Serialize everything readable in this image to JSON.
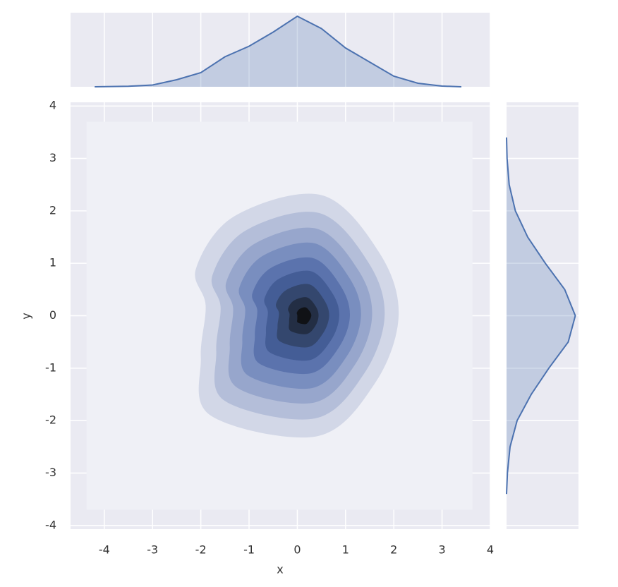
{
  "chart_data": {
    "type": "kde-joint",
    "x_label": "x",
    "y_label": "y",
    "xlim": [
      -4.7,
      4
    ],
    "ylim": [
      -4.07,
      4.07
    ],
    "xticks": [
      -4,
      -3,
      -2,
      -1,
      0,
      1,
      2,
      3,
      4
    ],
    "yticks": [
      -4,
      -3,
      -2,
      -1,
      0,
      1,
      2,
      3,
      4
    ],
    "grid": true,
    "color": "#4c72b0",
    "contours": [
      {
        "color": "#eff0f6",
        "x": [
          -4.37,
          3.63,
          3.63,
          -4.37
        ],
        "y": [
          3.7,
          3.7,
          -3.7,
          -3.7
        ]
      },
      {
        "color": "#d2d7e7",
        "x": [
          -2.1,
          -1.3,
          0.5,
          1.7,
          2.1,
          1.6,
          0.4,
          -1.8,
          -2.0,
          -1.9
        ],
        "y": [
          0.9,
          1.9,
          2.3,
          1.2,
          0,
          -1.3,
          -2.3,
          -1.9,
          -0.8,
          0.2
        ]
      },
      {
        "color": "#b4bed9",
        "x": [
          -1.76,
          -1.08,
          0.45,
          1.47,
          1.81,
          1.38,
          0.36,
          -1.51,
          -1.68,
          -1.59
        ],
        "y": [
          0.77,
          1.62,
          1.96,
          1.02,
          0,
          -1.11,
          -1.96,
          -1.62,
          -0.68,
          0.17
        ]
      },
      {
        "color": "#97a6cc",
        "x": [
          -1.47,
          -0.89,
          0.4,
          1.27,
          1.55,
          1.19,
          0.33,
          -1.25,
          -1.4,
          -1.33
        ],
        "y": [
          0.65,
          1.37,
          1.66,
          0.86,
          0,
          -0.94,
          -1.66,
          -1.37,
          -0.58,
          0.14
        ]
      },
      {
        "color": "#798ebf",
        "x": [
          -1.2,
          -0.72,
          0.36,
          1.08,
          1.32,
          1.02,
          0.3,
          -1.02,
          -1.14,
          -1.08
        ],
        "y": [
          0.54,
          1.14,
          1.38,
          0.72,
          0,
          -0.78,
          -1.38,
          -1.14,
          -0.48,
          0.12
        ]
      },
      {
        "color": "#5b73ad",
        "x": [
          -0.93,
          -0.55,
          0.32,
          0.89,
          1.09,
          0.85,
          0.27,
          -0.79,
          -0.88,
          -0.83
        ],
        "y": [
          0.43,
          0.91,
          1.1,
          0.58,
          0,
          -0.62,
          -1.1,
          -0.91,
          -0.38,
          0.1
        ]
      },
      {
        "color": "#445d96",
        "x": [
          -0.68,
          -0.39,
          0.28,
          0.72,
          0.87,
          0.69,
          0.24,
          -0.57,
          -0.65,
          -0.61
        ],
        "y": [
          0.33,
          0.7,
          0.85,
          0.44,
          0,
          -0.48,
          -0.85,
          -0.7,
          -0.3,
          0.07
        ]
      },
      {
        "color": "#34476e",
        "x": [
          -0.44,
          -0.23,
          0.24,
          0.55,
          0.66,
          0.53,
          0.22,
          -0.36,
          -0.41,
          -0.38
        ],
        "y": [
          0.23,
          0.49,
          0.6,
          0.31,
          0,
          -0.34,
          -0.6,
          -0.49,
          -0.21,
          0.05
        ]
      },
      {
        "color": "#232e44",
        "x": [
          -0.19,
          -0.07,
          0.2,
          0.38,
          0.44,
          0.37,
          0.19,
          -0.14,
          -0.17,
          -0.16
        ],
        "y": [
          0.14,
          0.29,
          0.35,
          0.18,
          0,
          -0.2,
          -0.35,
          -0.29,
          -0.12,
          0.03
        ]
      },
      {
        "color": "#101216",
        "x": [
          -0.01,
          0.05,
          0.17,
          0.26,
          0.29,
          0.25,
          0.17,
          0.01,
          0,
          0
        ],
        "y": [
          0.06,
          0.13,
          0.16,
          0.08,
          0,
          -0.09,
          -0.16,
          -0.13,
          -0.06,
          0.01
        ]
      }
    ],
    "marginal_x": {
      "x": [
        -4.2,
        -3.5,
        -3,
        -2.5,
        -2,
        -1.5,
        -1,
        -0.5,
        0,
        0.5,
        1,
        1.5,
        2,
        2.5,
        3,
        3.4
      ],
      "values": [
        0,
        0.003,
        0.01,
        0.04,
        0.08,
        0.17,
        0.23,
        0.31,
        0.4,
        0.33,
        0.22,
        0.14,
        0.06,
        0.02,
        0.004,
        0
      ]
    },
    "marginal_y": {
      "y": [
        -3.4,
        -3,
        -2.5,
        -2,
        -1.5,
        -1,
        -0.5,
        0,
        0.5,
        1,
        1.5,
        2,
        2.5,
        3,
        3.4
      ],
      "values": [
        0,
        0.005,
        0.02,
        0.06,
        0.14,
        0.24,
        0.35,
        0.39,
        0.33,
        0.22,
        0.12,
        0.05,
        0.015,
        0.003,
        0
      ]
    }
  }
}
